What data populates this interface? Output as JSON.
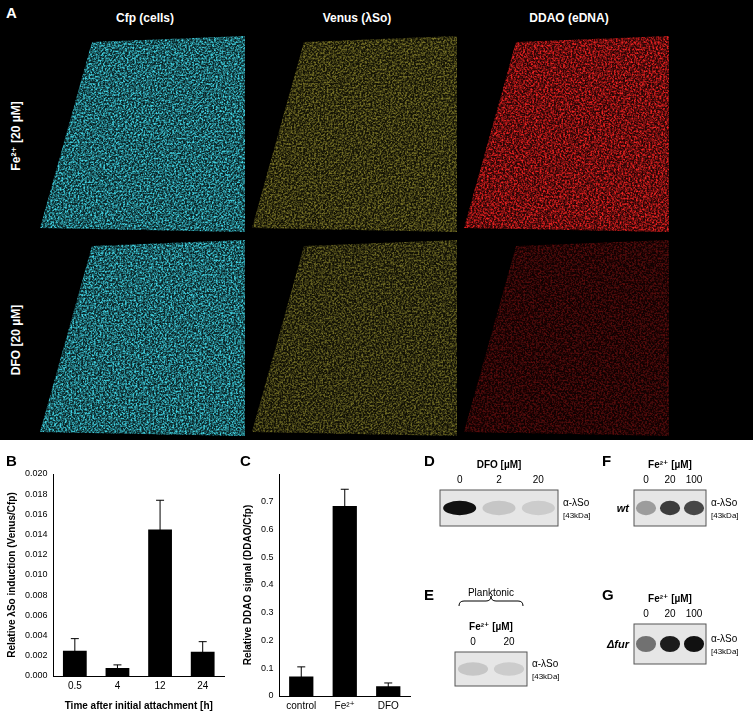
{
  "panel_A": {
    "label": "A",
    "columns": [
      {
        "title": "Cfp (cells)",
        "color": "#3fd0e0"
      },
      {
        "title": "Venus (λSo)",
        "color": "#c8c040"
      },
      {
        "title": "DDAO (eDNA)",
        "color": "#e82020"
      }
    ],
    "rows": [
      "Fe²⁺ [20 µM]",
      "DFO [20 µM]"
    ]
  },
  "chart_data": [
    {
      "panel": "B",
      "type": "bar",
      "categories": [
        "0.5",
        "4",
        "12",
        "24"
      ],
      "values": [
        0.0025,
        0.0008,
        0.0145,
        0.0024
      ],
      "error": [
        0.0012,
        0.0003,
        0.0029,
        0.001
      ],
      "color": "#000000",
      "xlabel": "Time after initial attachment [h]",
      "ylabel": "Relative λSo induction (Venus/Cfp)",
      "ylim": [
        0,
        0.02
      ],
      "yticks": [
        {
          "value": 0,
          "label": "0.000"
        },
        {
          "value": 0.002,
          "label": "0.002"
        },
        {
          "value": 0.004,
          "label": "0.004"
        },
        {
          "value": 0.006,
          "label": "0.006"
        },
        {
          "value": 0.008,
          "label": "0.008"
        },
        {
          "value": 0.01,
          "label": "0.010"
        },
        {
          "value": 0.012,
          "label": "0.012"
        },
        {
          "value": 0.014,
          "label": "0.014"
        },
        {
          "value": 0.016,
          "label": "0.016"
        },
        {
          "value": 0.018,
          "label": "0.018"
        },
        {
          "value": 0.02,
          "label": "0.020"
        }
      ],
      "grid": false
    },
    {
      "panel": "C",
      "type": "bar",
      "categories": [
        "control",
        "Fe²⁺",
        "DFO"
      ],
      "values": [
        0.07,
        0.685,
        0.035
      ],
      "error": [
        0.035,
        0.06,
        0.012
      ],
      "color": "#000000",
      "ylabel": "Relative DDAO signal (DDAO/Cfp)",
      "ylim": [
        0,
        0.8
      ],
      "yticks": [
        0,
        0.1,
        0.2,
        0.3,
        0.4,
        0.5,
        0.6,
        0.7
      ],
      "grid": false
    }
  ],
  "blots": [
    {
      "label": "D",
      "title": "DFO [µM]",
      "lanes": [
        0,
        2,
        20
      ],
      "band_intensity": [
        1.0,
        0.15,
        0.12
      ],
      "antibody": "α-λSo",
      "size": "[43kDa]"
    },
    {
      "label": "E",
      "condition": "Planktonic",
      "title": "Fe²⁺ [µM]",
      "lanes": [
        0,
        20
      ],
      "band_intensity": [
        0.15,
        0.12
      ],
      "antibody": "α-λSo",
      "size": "[43kDa]"
    },
    {
      "label": "F",
      "title": "Fe²⁺ [µM]",
      "strain": "wt",
      "lanes": [
        0,
        20,
        100
      ],
      "band_intensity": [
        0.35,
        0.8,
        0.75
      ],
      "antibody": "α-λSo",
      "size": "[43kDa]"
    },
    {
      "label": "G",
      "title": "Fe²⁺ [µM]",
      "strain": "Δfur",
      "lanes": [
        0,
        20,
        100
      ],
      "band_intensity": [
        0.55,
        0.95,
        1.0
      ],
      "antibody": "α-λSo",
      "size": "[43kDa]"
    }
  ]
}
